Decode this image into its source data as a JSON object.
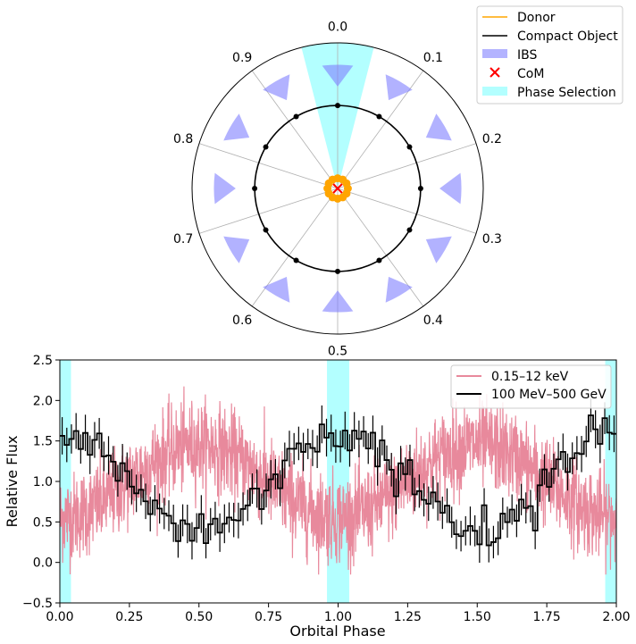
{
  "chart_data": [
    {
      "type": "polar",
      "title": "",
      "orientation": "phase 0.0 at top, increasing clockwise",
      "phase_tick_labels": [
        "0.0",
        "0.1",
        "0.2",
        "0.3",
        "0.4",
        "0.5",
        "0.6",
        "0.7",
        "0.8",
        "0.9"
      ],
      "radial_limit": 1.0,
      "compact_object_orbit_radius": 0.57,
      "donor_orbit_radius": 0.07,
      "com": [
        0,
        0
      ],
      "orbit_marker_phases": [
        0.0,
        0.0833,
        0.1667,
        0.25,
        0.3333,
        0.4167,
        0.5,
        0.5833,
        0.6667,
        0.75,
        0.8333,
        0.9167
      ],
      "ibs_wedges": {
        "phases": [
          0.0,
          0.0833,
          0.1667,
          0.25,
          0.3333,
          0.4167,
          0.5,
          0.5833,
          0.6667,
          0.75,
          0.8333,
          0.9167
        ],
        "r_inner": 0.7,
        "r_outer": 0.85,
        "half_width_phase": 0.02
      },
      "phase_selection": [
        -0.04,
        0.04
      ],
      "legend": {
        "position": "upper-right",
        "entries": [
          {
            "label": "Donor",
            "color": "#ffa500",
            "kind": "line"
          },
          {
            "label": "Compact Object",
            "color": "#000000",
            "kind": "line"
          },
          {
            "label": "IBS",
            "color": "#b3b3ff",
            "kind": "patch"
          },
          {
            "label": "CoM",
            "color": "#ff0000",
            "kind": "x"
          },
          {
            "label": "Phase Selection",
            "color": "#b3ffff",
            "kind": "patch"
          }
        ]
      }
    },
    {
      "type": "line",
      "xlabel": "Orbital Phase",
      "ylabel": "Relative Flux",
      "xlim": [
        0,
        2
      ],
      "ylim": [
        -0.5,
        2.5
      ],
      "xticks": [
        0,
        0.25,
        0.5,
        0.75,
        1.0,
        1.25,
        1.5,
        1.75,
        2.0
      ],
      "xtick_labels": [
        "0.00",
        "0.25",
        "0.50",
        "0.75",
        "1.00",
        "1.25",
        "1.50",
        "1.75",
        "2.00"
      ],
      "yticks": [
        -0.5,
        0.0,
        0.5,
        1.0,
        1.5,
        2.0,
        2.5
      ],
      "ytick_labels": [
        "−0.5",
        "0.0",
        "0.5",
        "1.0",
        "1.5",
        "2.0",
        "2.5"
      ],
      "phase_selection_bands": [
        [
          0,
          0.04
        ],
        [
          0.96,
          1.04
        ],
        [
          1.96,
          2.0
        ]
      ],
      "legend": {
        "position": "upper-right",
        "entries": [
          {
            "label": "0.15–12 keV",
            "color": "#e8899c"
          },
          {
            "label": "100 MeV–500 GeV",
            "color": "#000000"
          }
        ]
      },
      "series": [
        {
          "name": "0.15–12 keV",
          "color": "#e8899c",
          "model": "1.0 + 0.45*cos(2*pi*(phase-0.5)) with noise sigma≈0.27, ~1000 samples per phase unit",
          "min": -0.15,
          "max": 2.42
        },
        {
          "name": "100 MeV–500 GeV",
          "color": "#000000",
          "kind": "step with error bars",
          "bins_per_phase": 60,
          "model": "1.0 + 0.6*cos(2*pi*phase) with noise, error ~±0.2"
        }
      ]
    }
  ]
}
